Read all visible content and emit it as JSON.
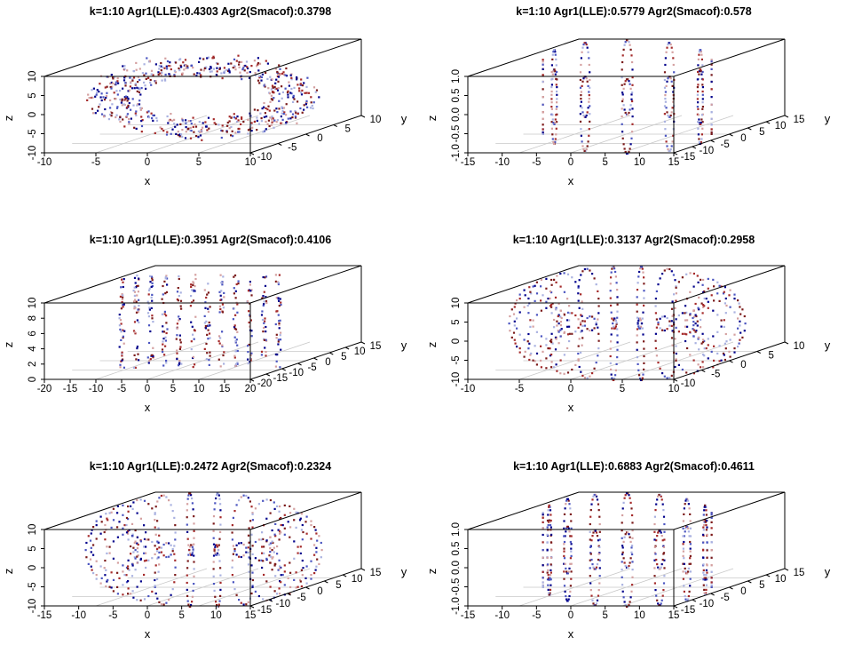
{
  "chart_data": [
    {
      "type": "scatter3d",
      "shape": "torus",
      "slice": "flat",
      "title": "k=1:10 Agr1(LLE):0.4303 Agr2(Smacof):0.3798",
      "xlabel": "x",
      "ylabel": "y",
      "zlabel": "z",
      "xlim": [
        -10,
        10
      ],
      "ylim": [
        -10,
        10
      ],
      "zlim": [
        -10,
        10
      ],
      "xticks": [
        "-10",
        "-5",
        "0",
        "5",
        "10"
      ],
      "yticks": [
        "-10",
        "-5",
        "0",
        "5",
        "10"
      ],
      "zticks": [
        "-10",
        "-5",
        "0",
        "5",
        "10"
      ],
      "point_colors": [
        "#00008B",
        "#4B55C0",
        "#A9B1E0",
        "#D4A0A0",
        "#A52A2A",
        "#7B1A1A"
      ]
    },
    {
      "type": "scatter3d",
      "shape": "torus",
      "slice": "standing",
      "title": "k=1:10 Agr1(LLE):0.5779 Agr2(Smacof):0.578",
      "xlabel": "x",
      "ylabel": "y",
      "zlabel": "z",
      "xlim": [
        -15,
        15
      ],
      "ylim": [
        -15,
        15
      ],
      "zlim": [
        -1,
        1
      ],
      "xticks": [
        "-15",
        "-10",
        "-5",
        "0",
        "5",
        "10",
        "15"
      ],
      "yticks": [
        "-15",
        "-10",
        "-5",
        "0",
        "5",
        "10",
        "15"
      ],
      "zticks": [
        "-1.0",
        "-0.5",
        "0.0",
        "0.5",
        "1.0"
      ],
      "point_colors": [
        "#00008B",
        "#4B55C0",
        "#A9B1E0",
        "#D4A0A0",
        "#A52A2A",
        "#7B1A1A"
      ]
    },
    {
      "type": "scatter3d",
      "shape": "scatter",
      "slice": "sparse",
      "title": "k=1:10 Agr1(LLE):0.3951 Agr2(Smacof):0.4106",
      "xlabel": "x",
      "ylabel": "y",
      "zlabel": "z",
      "xlim": [
        -20,
        20
      ],
      "ylim": [
        -20,
        15
      ],
      "zlim": [
        0,
        10
      ],
      "xticks": [
        "-20",
        "-15",
        "-10",
        "-5",
        "0",
        "5",
        "10",
        "15",
        "20"
      ],
      "yticks": [
        "-20",
        "-15",
        "-10",
        "-5",
        "0",
        "5",
        "10",
        "15"
      ],
      "zticks": [
        "0",
        "2",
        "4",
        "6",
        "8",
        "10"
      ],
      "point_colors": [
        "#00008B",
        "#4B55C0",
        "#A9B1E0",
        "#D4A0A0",
        "#A52A2A",
        "#7B1A1A"
      ]
    },
    {
      "type": "scatter3d",
      "shape": "torus",
      "slice": "ellipsoid",
      "title": "k=1:10 Agr1(LLE):0.3137 Agr2(Smacof):0.2958",
      "xlabel": "x",
      "ylabel": "y",
      "zlabel": "z",
      "xlim": [
        -10,
        10
      ],
      "ylim": [
        -10,
        10
      ],
      "zlim": [
        -10,
        10
      ],
      "xticks": [
        "-10",
        "-5",
        "0",
        "5",
        "10"
      ],
      "yticks": [
        "-10",
        "-5",
        "0",
        "5",
        "10"
      ],
      "zticks": [
        "-10",
        "-5",
        "0",
        "5",
        "10"
      ],
      "point_colors": [
        "#00008B",
        "#4B55C0",
        "#A9B1E0",
        "#D4A0A0",
        "#A52A2A",
        "#7B1A1A"
      ]
    },
    {
      "type": "scatter3d",
      "shape": "torus",
      "slice": "ellipsoid",
      "title": "k=1:10 Agr1(LLE):0.2472 Agr2(Smacof):0.2324",
      "xlabel": "x",
      "ylabel": "y",
      "zlabel": "z",
      "xlim": [
        -15,
        15
      ],
      "ylim": [
        -15,
        15
      ],
      "zlim": [
        -10,
        10
      ],
      "xticks": [
        "-15",
        "-10",
        "-5",
        "0",
        "5",
        "10",
        "15"
      ],
      "yticks": [
        "-15",
        "-10",
        "-5",
        "0",
        "5",
        "10",
        "15"
      ],
      "zticks": [
        "-10",
        "-5",
        "0",
        "5",
        "10"
      ],
      "point_colors": [
        "#00008B",
        "#4B55C0",
        "#A9B1E0",
        "#D4A0A0",
        "#A52A2A",
        "#7B1A1A"
      ]
    },
    {
      "type": "scatter3d",
      "shape": "torus",
      "slice": "standing",
      "title": "k=1:10 Agr1(LLE):0.6883 Agr2(Smacof):0.4611",
      "xlabel": "x",
      "ylabel": "y",
      "zlabel": "z",
      "xlim": [
        -15,
        15
      ],
      "ylim": [
        -15,
        15
      ],
      "zlim": [
        -1,
        1
      ],
      "xticks": [
        "-15",
        "-10",
        "-5",
        "0",
        "5",
        "10",
        "15"
      ],
      "yticks": [
        "-15",
        "-10",
        "-5",
        "0",
        "5",
        "10",
        "15"
      ],
      "zticks": [
        "-1.0",
        "-0.5",
        "0.0",
        "0.5",
        "1.0"
      ],
      "point_colors": [
        "#00008B",
        "#4B55C0",
        "#A9B1E0",
        "#D4A0A0",
        "#A52A2A",
        "#7B1A1A"
      ]
    }
  ]
}
